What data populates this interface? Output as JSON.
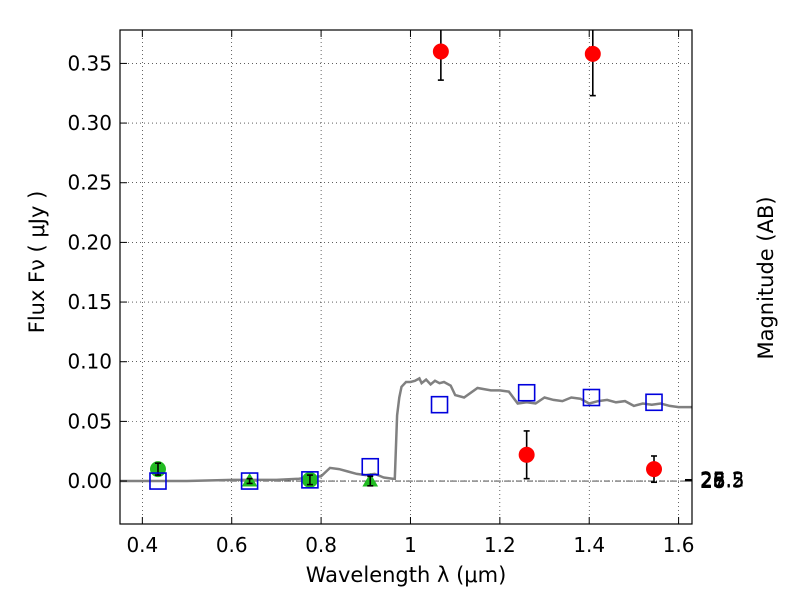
{
  "chart_data": {
    "type": "scatter",
    "xlabel": "Wavelength  λ (μm)",
    "ylabel": "Flux  Fν  ( μJy )",
    "y2label": "Magnitude (AB)",
    "xlim": [
      0.35,
      1.63
    ],
    "ylim": [
      -0.036,
      0.378
    ],
    "grid": true,
    "x_ticks": [
      0.4,
      0.6,
      0.8,
      1.0,
      1.2,
      1.4,
      1.6
    ],
    "x_tick_labels": [
      "0.4",
      "0.6",
      "0.8",
      "1",
      "1.2",
      "1.4",
      "1.6"
    ],
    "y_ticks": [
      0.0,
      0.05,
      0.1,
      0.15,
      0.2,
      0.25,
      0.3,
      0.35
    ],
    "y_tick_labels": [
      "0.00",
      "0.05",
      "0.10",
      "0.15",
      "0.20",
      "0.25",
      "0.30",
      "0.35"
    ],
    "mag_ticks": [
      25,
      25.2,
      25.5,
      26,
      26.5,
      27,
      28
    ],
    "mag_tick_labels": [
      "25",
      "25.2",
      "25.5",
      "26",
      "26.5",
      "27",
      "28"
    ],
    "colors": {
      "detection": "#ff0000",
      "green": "#22bb22",
      "model": "#808080",
      "model_point": "#0000dd",
      "error_bar": "#000000"
    },
    "model_sed": {
      "x": [
        0.35,
        0.5,
        0.6,
        0.7,
        0.75,
        0.8,
        0.82,
        0.84,
        0.86,
        0.88,
        0.9,
        0.92,
        0.94,
        0.96,
        0.965,
        0.97,
        0.975,
        0.98,
        0.99,
        1.0,
        1.01,
        1.02,
        1.025,
        1.035,
        1.045,
        1.055,
        1.065,
        1.075,
        1.09,
        1.1,
        1.12,
        1.15,
        1.18,
        1.2,
        1.22,
        1.24,
        1.26,
        1.28,
        1.3,
        1.32,
        1.34,
        1.36,
        1.38,
        1.4,
        1.42,
        1.44,
        1.46,
        1.48,
        1.5,
        1.52,
        1.54,
        1.56,
        1.58,
        1.6,
        1.63
      ],
      "y": [
        0.0,
        0.0,
        0.001,
        0.001,
        0.002,
        0.004,
        0.011,
        0.01,
        0.008,
        0.006,
        0.005,
        0.006,
        0.003,
        0.002,
        0.002,
        0.055,
        0.07,
        0.079,
        0.083,
        0.083,
        0.084,
        0.086,
        0.082,
        0.085,
        0.081,
        0.084,
        0.082,
        0.083,
        0.08,
        0.072,
        0.07,
        0.078,
        0.076,
        0.076,
        0.075,
        0.065,
        0.066,
        0.065,
        0.07,
        0.068,
        0.067,
        0.07,
        0.069,
        0.065,
        0.067,
        0.068,
        0.066,
        0.067,
        0.063,
        0.065,
        0.064,
        0.065,
        0.063,
        0.062,
        0.062
      ]
    },
    "model_points": {
      "x": [
        0.435,
        0.64,
        0.775,
        0.91,
        1.065,
        1.26,
        1.405,
        1.545
      ],
      "y": [
        0.0,
        0.0,
        0.001,
        0.012,
        0.064,
        0.074,
        0.07,
        0.066
      ]
    },
    "detections": {
      "x": [
        1.068,
        1.26,
        1.408,
        1.545
      ],
      "y": [
        0.36,
        0.022,
        0.358,
        0.01
      ],
      "err": [
        0.024,
        0.02,
        0.035,
        0.011
      ]
    },
    "green_points": {
      "x": [
        0.435,
        0.775
      ],
      "y": [
        0.01,
        0.001
      ],
      "err": [
        0.005,
        0.004
      ]
    },
    "upper_limits": {
      "x": [
        0.64,
        0.91
      ],
      "y": [
        0.0,
        0.0
      ],
      "err": [
        0.002,
        0.004
      ]
    }
  }
}
